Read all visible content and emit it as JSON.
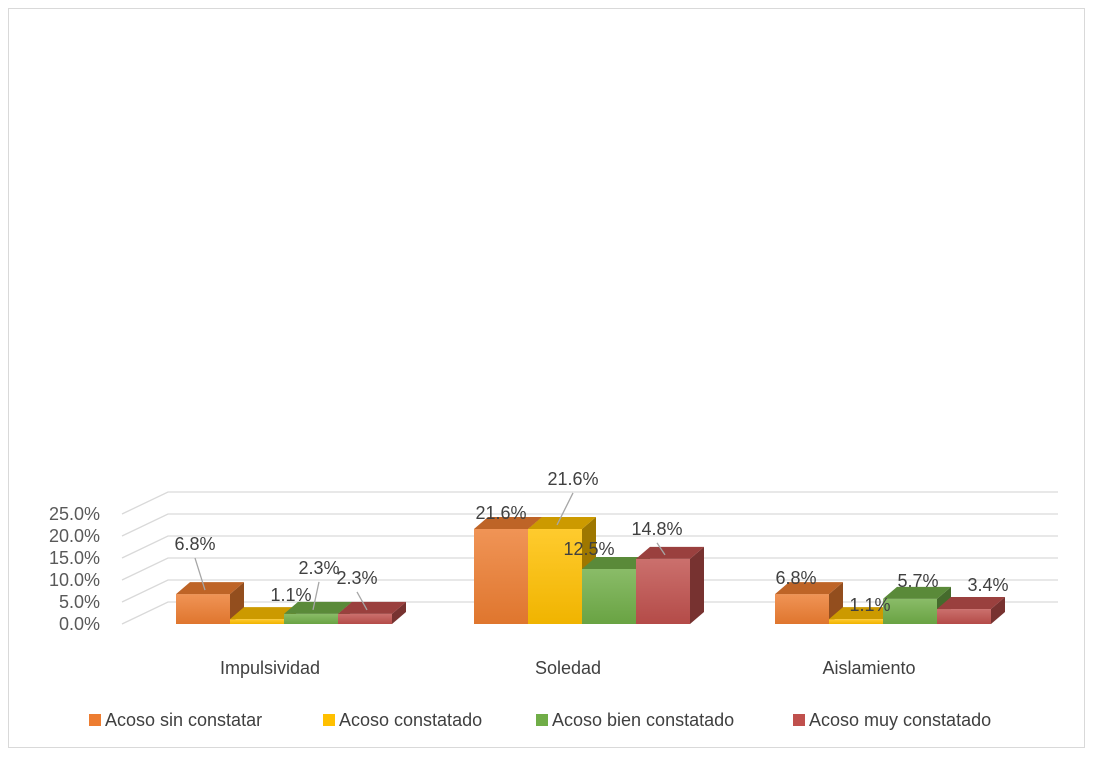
{
  "chart_data": {
    "type": "bar",
    "categories": [
      "Impulsividad",
      "Soledad",
      "Aislamiento"
    ],
    "series": [
      {
        "name": "Acoso sin constatar",
        "values": [
          6.8,
          21.6,
          6.8
        ],
        "labels": [
          "6.8%",
          "21.6%",
          "6.8%"
        ],
        "color": "#ED7D31"
      },
      {
        "name": "Acoso constatado",
        "values": [
          1.1,
          21.6,
          1.1
        ],
        "labels": [
          "1.1%",
          "21.6%",
          "1.1%"
        ],
        "color": "#FFC000"
      },
      {
        "name": "Acoso bien constatado",
        "values": [
          2.3,
          12.5,
          5.7
        ],
        "labels": [
          "2.3%",
          "12.5%",
          "5.7%"
        ],
        "color": "#70AD47"
      },
      {
        "name": "Acoso muy constatado",
        "values": [
          2.3,
          14.8,
          3.4
        ],
        "labels": [
          "2.3%",
          "14.8%",
          "3.4%"
        ],
        "color": "#C0504D"
      }
    ],
    "yticks": [
      "0.0%",
      "5.0%",
      "10.0%",
      "15.0%",
      "20.0%",
      "25.0%"
    ],
    "ylim": [
      0,
      25
    ],
    "grid": true,
    "legend": "bottom",
    "style": "3d-clustered-column"
  }
}
